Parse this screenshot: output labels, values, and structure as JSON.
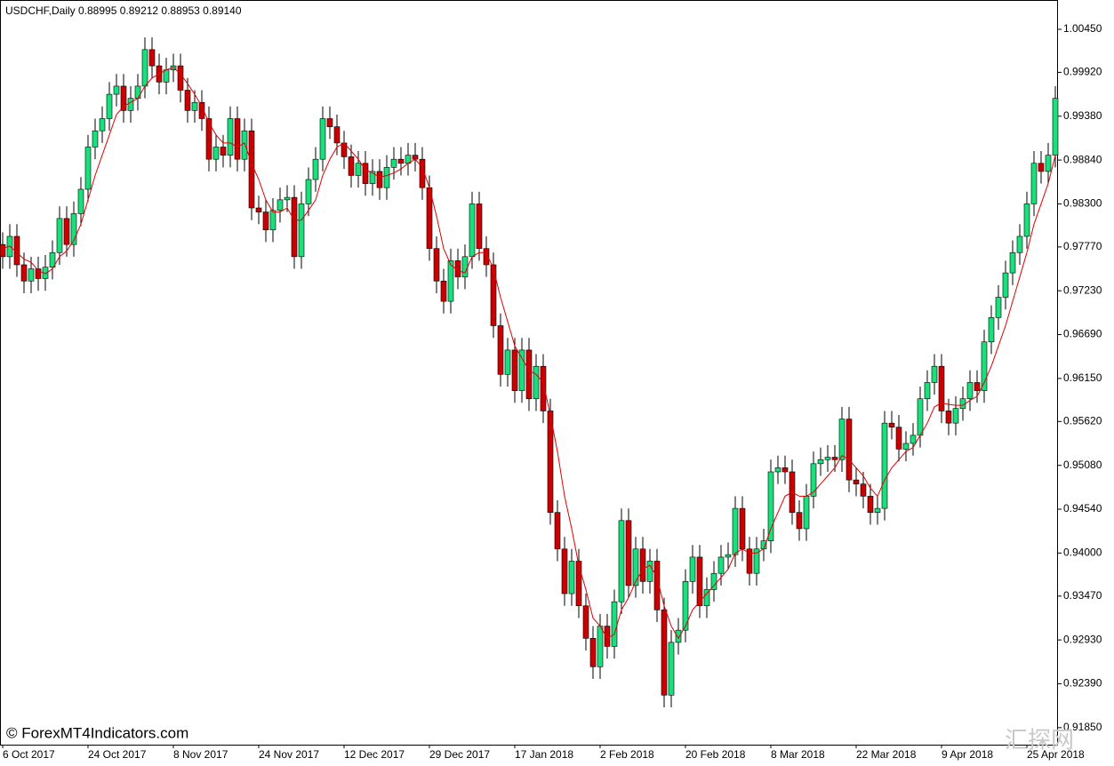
{
  "chart_data": {
    "type": "candlestick",
    "title": "USDCHF,Daily",
    "header_values": "0.88995 0.89212 0.88953 0.89140",
    "watermark": "© ForexMT4Indicators.com",
    "watermark2": "汇探网",
    "up_color": "#19e07c",
    "down_color": "#cc0000",
    "ylim": [
      0.9164,
      1.008
    ],
    "yticks": [
      {
        "value": 1.0045,
        "label": "1.00450"
      },
      {
        "value": 0.9992,
        "label": "0.99920"
      },
      {
        "value": 0.9938,
        "label": "0.99380"
      },
      {
        "value": 0.9884,
        "label": "0.98840"
      },
      {
        "value": 0.983,
        "label": "0.98300"
      },
      {
        "value": 0.9777,
        "label": "0.97770"
      },
      {
        "value": 0.9723,
        "label": "0.97230"
      },
      {
        "value": 0.9669,
        "label": "0.96690"
      },
      {
        "value": 0.9615,
        "label": "0.96150"
      },
      {
        "value": 0.9562,
        "label": "0.95620"
      },
      {
        "value": 0.9508,
        "label": "0.95080"
      },
      {
        "value": 0.9454,
        "label": "0.94540"
      },
      {
        "value": 0.94,
        "label": "0.94000"
      },
      {
        "value": 0.9347,
        "label": "0.93470"
      },
      {
        "value": 0.9293,
        "label": "0.92930"
      },
      {
        "value": 0.9239,
        "label": "0.92390"
      },
      {
        "value": 0.9185,
        "label": "0.91850"
      }
    ],
    "categories": [
      "6 Oct 2017",
      null,
      null,
      null,
      null,
      null,
      null,
      null,
      null,
      null,
      null,
      null,
      "24 Oct 2017",
      null,
      null,
      null,
      null,
      null,
      null,
      null,
      null,
      null,
      null,
      null,
      "8 Nov 2017",
      null,
      null,
      null,
      null,
      null,
      null,
      null,
      null,
      null,
      null,
      null,
      "24 Nov 2017",
      null,
      null,
      null,
      null,
      null,
      null,
      null,
      null,
      null,
      null,
      null,
      "12 Dec 2017",
      null,
      null,
      null,
      null,
      null,
      null,
      null,
      null,
      null,
      null,
      null,
      "29 Dec 2017",
      null,
      null,
      null,
      null,
      null,
      null,
      null,
      null,
      null,
      null,
      null,
      "17 Jan 2018",
      null,
      null,
      null,
      null,
      null,
      null,
      null,
      null,
      null,
      null,
      null,
      "2 Feb 2018",
      null,
      null,
      null,
      null,
      null,
      null,
      null,
      null,
      null,
      null,
      null,
      "20 Feb 2018",
      null,
      null,
      null,
      null,
      null,
      null,
      null,
      null,
      null,
      null,
      null,
      "8 Mar 2018",
      null,
      null,
      null,
      null,
      null,
      null,
      null,
      null,
      null,
      null,
      null,
      "22 Mar 2018",
      null,
      null,
      null,
      null,
      null,
      null,
      null,
      null,
      null,
      null,
      null,
      "9 Apr 2018",
      null,
      null,
      null,
      null,
      null,
      null,
      null,
      null,
      null,
      null,
      null,
      "25 Apr 2018",
      null,
      null,
      null,
      null
    ],
    "candles": [
      [
        0.978,
        0.9795,
        0.975,
        0.9765
      ],
      [
        0.9765,
        0.9805,
        0.975,
        0.979
      ],
      [
        0.979,
        0.9805,
        0.974,
        0.9755
      ],
      [
        0.9755,
        0.977,
        0.972,
        0.9735
      ],
      [
        0.9735,
        0.9765,
        0.972,
        0.975
      ],
      [
        0.975,
        0.9765,
        0.9723,
        0.9738
      ],
      [
        0.9738,
        0.9767,
        0.9723,
        0.9752
      ],
      [
        0.9752,
        0.9785,
        0.9737,
        0.977
      ],
      [
        0.977,
        0.9827,
        0.9755,
        0.9812
      ],
      [
        0.9812,
        0.9827,
        0.9765,
        0.978
      ],
      [
        0.978,
        0.9833,
        0.9765,
        0.9818
      ],
      [
        0.9818,
        0.9863,
        0.9803,
        0.9848
      ],
      [
        0.9848,
        0.9915,
        0.9833,
        0.99
      ],
      [
        0.99,
        0.9935,
        0.9885,
        0.992
      ],
      [
        0.992,
        0.995,
        0.9905,
        0.9935
      ],
      [
        0.9935,
        0.998,
        0.992,
        0.9965
      ],
      [
        0.9965,
        0.999,
        0.995,
        0.9975
      ],
      [
        0.9975,
        0.999,
        0.993,
        0.9945
      ],
      [
        0.9945,
        0.9975,
        0.993,
        0.996
      ],
      [
        0.996,
        0.999,
        0.9945,
        0.9975
      ],
      [
        0.9975,
        1.0035,
        0.996,
        1.002
      ],
      [
        1.002,
        1.0035,
        0.9985,
        1.0
      ],
      [
        1.0,
        1.0015,
        0.9965,
        0.998
      ],
      [
        0.998,
        1.001,
        0.9965,
        0.9995
      ],
      [
        0.9995,
        1.0015,
        0.998,
        1.0
      ],
      [
        1.0,
        1.0015,
        0.9955,
        0.997
      ],
      [
        0.997,
        0.9985,
        0.993,
        0.9945
      ],
      [
        0.9945,
        0.997,
        0.993,
        0.9955
      ],
      [
        0.9955,
        0.997,
        0.992,
        0.9935
      ],
      [
        0.9935,
        0.995,
        0.987,
        0.9885
      ],
      [
        0.9885,
        0.9915,
        0.987,
        0.99
      ],
      [
        0.99,
        0.9915,
        0.9875,
        0.989
      ],
      [
        0.989,
        0.995,
        0.9875,
        0.9935
      ],
      [
        0.9935,
        0.995,
        0.987,
        0.9885
      ],
      [
        0.9885,
        0.9935,
        0.987,
        0.992
      ],
      [
        0.992,
        0.9935,
        0.981,
        0.9825
      ],
      [
        0.9825,
        0.984,
        0.9805,
        0.982
      ],
      [
        0.982,
        0.9835,
        0.9783,
        0.9798
      ],
      [
        0.9798,
        0.9837,
        0.9783,
        0.9822
      ],
      [
        0.9822,
        0.985,
        0.9807,
        0.9835
      ],
      [
        0.9835,
        0.9853,
        0.982,
        0.9838
      ],
      [
        0.9838,
        0.9853,
        0.975,
        0.9765
      ],
      [
        0.9765,
        0.9845,
        0.975,
        0.983
      ],
      [
        0.983,
        0.9875,
        0.9815,
        0.986
      ],
      [
        0.986,
        0.99,
        0.9845,
        0.9885
      ],
      [
        0.9885,
        0.995,
        0.987,
        0.9935
      ],
      [
        0.9935,
        0.995,
        0.991,
        0.9925
      ],
      [
        0.9925,
        0.994,
        0.989,
        0.9905
      ],
      [
        0.9905,
        0.992,
        0.9873,
        0.9888
      ],
      [
        0.9888,
        0.9903,
        0.985,
        0.9865
      ],
      [
        0.9865,
        0.9895,
        0.985,
        0.988
      ],
      [
        0.988,
        0.9895,
        0.984,
        0.9855
      ],
      [
        0.9855,
        0.9885,
        0.984,
        0.987
      ],
      [
        0.987,
        0.9885,
        0.9835,
        0.985
      ],
      [
        0.985,
        0.989,
        0.9835,
        0.9875
      ],
      [
        0.9875,
        0.99,
        0.986,
        0.9885
      ],
      [
        0.9885,
        0.99,
        0.9865,
        0.988
      ],
      [
        0.988,
        0.9905,
        0.9865,
        0.989
      ],
      [
        0.989,
        0.9905,
        0.987,
        0.9885
      ],
      [
        0.9885,
        0.99,
        0.9835,
        0.985
      ],
      [
        0.985,
        0.9865,
        0.976,
        0.9775
      ],
      [
        0.9775,
        0.979,
        0.972,
        0.9735
      ],
      [
        0.9735,
        0.975,
        0.9695,
        0.971
      ],
      [
        0.971,
        0.9775,
        0.9695,
        0.976
      ],
      [
        0.976,
        0.9775,
        0.9725,
        0.974
      ],
      [
        0.974,
        0.978,
        0.9725,
        0.9765
      ],
      [
        0.9765,
        0.9845,
        0.975,
        0.983
      ],
      [
        0.983,
        0.9845,
        0.976,
        0.9775
      ],
      [
        0.9775,
        0.979,
        0.974,
        0.9755
      ],
      [
        0.9755,
        0.977,
        0.9665,
        0.968
      ],
      [
        0.968,
        0.9695,
        0.9605,
        0.962
      ],
      [
        0.962,
        0.9665,
        0.9605,
        0.965
      ],
      [
        0.965,
        0.9665,
        0.9585,
        0.96
      ],
      [
        0.96,
        0.9665,
        0.9585,
        0.965
      ],
      [
        0.965,
        0.9665,
        0.9575,
        0.959
      ],
      [
        0.959,
        0.9645,
        0.9575,
        0.963
      ],
      [
        0.963,
        0.9645,
        0.956,
        0.9575
      ],
      [
        0.9575,
        0.959,
        0.9435,
        0.945
      ],
      [
        0.945,
        0.9465,
        0.939,
        0.9405
      ],
      [
        0.9405,
        0.942,
        0.9335,
        0.935
      ],
      [
        0.935,
        0.9405,
        0.9335,
        0.939
      ],
      [
        0.939,
        0.9405,
        0.932,
        0.9335
      ],
      [
        0.9335,
        0.935,
        0.928,
        0.9295
      ],
      [
        0.9295,
        0.931,
        0.9245,
        0.926
      ],
      [
        0.926,
        0.9325,
        0.9245,
        0.931
      ],
      [
        0.931,
        0.9325,
        0.927,
        0.9285
      ],
      [
        0.9285,
        0.9355,
        0.927,
        0.934
      ],
      [
        0.934,
        0.9455,
        0.9325,
        0.944
      ],
      [
        0.944,
        0.9455,
        0.9345,
        0.936
      ],
      [
        0.936,
        0.942,
        0.9345,
        0.9405
      ],
      [
        0.9405,
        0.942,
        0.935,
        0.9365
      ],
      [
        0.9365,
        0.9405,
        0.935,
        0.939
      ],
      [
        0.939,
        0.9405,
        0.9315,
        0.933
      ],
      [
        0.933,
        0.9345,
        0.921,
        0.9225
      ],
      [
        0.9225,
        0.9305,
        0.921,
        0.929
      ],
      [
        0.929,
        0.932,
        0.9275,
        0.9305
      ],
      [
        0.9305,
        0.938,
        0.929,
        0.9365
      ],
      [
        0.9365,
        0.941,
        0.935,
        0.9395
      ],
      [
        0.9395,
        0.941,
        0.932,
        0.9335
      ],
      [
        0.9335,
        0.937,
        0.932,
        0.9355
      ],
      [
        0.9355,
        0.939,
        0.934,
        0.9375
      ],
      [
        0.9375,
        0.941,
        0.936,
        0.9395
      ],
      [
        0.9395,
        0.9413,
        0.938,
        0.9398
      ],
      [
        0.9398,
        0.947,
        0.9383,
        0.9455
      ],
      [
        0.9455,
        0.947,
        0.939,
        0.9405
      ],
      [
        0.9405,
        0.942,
        0.936,
        0.9375
      ],
      [
        0.9375,
        0.942,
        0.936,
        0.9405
      ],
      [
        0.9405,
        0.943,
        0.939,
        0.9415
      ],
      [
        0.9415,
        0.9515,
        0.94,
        0.95
      ],
      [
        0.95,
        0.952,
        0.9485,
        0.9505
      ],
      [
        0.9505,
        0.952,
        0.9485,
        0.95
      ],
      [
        0.95,
        0.9515,
        0.9435,
        0.945
      ],
      [
        0.945,
        0.9465,
        0.9415,
        0.943
      ],
      [
        0.943,
        0.9485,
        0.9415,
        0.947
      ],
      [
        0.947,
        0.9525,
        0.9455,
        0.951
      ],
      [
        0.951,
        0.953,
        0.9495,
        0.9515
      ],
      [
        0.9515,
        0.9533,
        0.95,
        0.9518
      ],
      [
        0.9518,
        0.9533,
        0.95,
        0.9515
      ],
      [
        0.9515,
        0.958,
        0.95,
        0.9565
      ],
      [
        0.9565,
        0.958,
        0.9475,
        0.949
      ],
      [
        0.949,
        0.9505,
        0.947,
        0.9485
      ],
      [
        0.9485,
        0.95,
        0.9455,
        0.947
      ],
      [
        0.947,
        0.9485,
        0.9435,
        0.945
      ],
      [
        0.945,
        0.947,
        0.9435,
        0.9455
      ],
      [
        0.9455,
        0.9575,
        0.944,
        0.956
      ],
      [
        0.956,
        0.9575,
        0.954,
        0.9555
      ],
      [
        0.9555,
        0.957,
        0.9513,
        0.9528
      ],
      [
        0.9528,
        0.955,
        0.9513,
        0.9535
      ],
      [
        0.9535,
        0.956,
        0.952,
        0.9545
      ],
      [
        0.9545,
        0.9605,
        0.953,
        0.959
      ],
      [
        0.959,
        0.9625,
        0.9575,
        0.961
      ],
      [
        0.961,
        0.9645,
        0.9595,
        0.963
      ],
      [
        0.963,
        0.9645,
        0.956,
        0.9575
      ],
      [
        0.9575,
        0.959,
        0.9545,
        0.956
      ],
      [
        0.956,
        0.9593,
        0.9545,
        0.9578
      ],
      [
        0.9578,
        0.9605,
        0.9563,
        0.959
      ],
      [
        0.959,
        0.9625,
        0.9575,
        0.961
      ],
      [
        0.961,
        0.9625,
        0.9585,
        0.96
      ],
      [
        0.96,
        0.9675,
        0.9585,
        0.966
      ],
      [
        0.966,
        0.9705,
        0.9645,
        0.969
      ],
      [
        0.969,
        0.973,
        0.9675,
        0.9715
      ],
      [
        0.9715,
        0.976,
        0.97,
        0.9745
      ],
      [
        0.9745,
        0.9785,
        0.973,
        0.977
      ],
      [
        0.977,
        0.9805,
        0.9755,
        0.979
      ],
      [
        0.979,
        0.9845,
        0.9775,
        0.983
      ],
      [
        0.983,
        0.9895,
        0.9815,
        0.988
      ],
      [
        0.988,
        0.9895,
        0.9855,
        0.987
      ],
      [
        0.987,
        0.9905,
        0.9855,
        0.989
      ],
      [
        0.989,
        0.9975,
        0.9875,
        0.996
      ]
    ],
    "ma": {
      "color": "#e00000",
      "values": [
        0.9775,
        0.9778,
        0.977,
        0.9762,
        0.9758,
        0.9748,
        0.9744,
        0.975,
        0.9765,
        0.9772,
        0.9785,
        0.9805,
        0.9835,
        0.9865,
        0.989,
        0.9915,
        0.994,
        0.995,
        0.9955,
        0.996,
        0.9975,
        0.9985,
        0.999,
        0.9995,
        0.9998,
        0.999,
        0.9978,
        0.9965,
        0.995,
        0.993,
        0.9915,
        0.9905,
        0.9905,
        0.99,
        0.9905,
        0.988,
        0.986,
        0.9835,
        0.982,
        0.982,
        0.9825,
        0.981,
        0.981,
        0.9822,
        0.9835,
        0.9865,
        0.9885,
        0.99,
        0.9905,
        0.9895,
        0.9885,
        0.9872,
        0.9868,
        0.9863,
        0.9865,
        0.9868,
        0.9873,
        0.988,
        0.9885,
        0.9875,
        0.985,
        0.9815,
        0.9775,
        0.9755,
        0.9748,
        0.9745,
        0.9765,
        0.977,
        0.977,
        0.975,
        0.9715,
        0.9685,
        0.9655,
        0.964,
        0.9625,
        0.962,
        0.961,
        0.957,
        0.9525,
        0.947,
        0.943,
        0.9385,
        0.9355,
        0.932,
        0.931,
        0.9295,
        0.93,
        0.933,
        0.9345,
        0.9365,
        0.938,
        0.9385,
        0.937,
        0.9335,
        0.931,
        0.9295,
        0.931,
        0.933,
        0.934,
        0.935,
        0.936,
        0.937,
        0.938,
        0.94,
        0.9405,
        0.94,
        0.94,
        0.9405,
        0.943,
        0.945,
        0.947,
        0.9475,
        0.947,
        0.947,
        0.9475,
        0.9485,
        0.9495,
        0.9505,
        0.952,
        0.9515,
        0.9505,
        0.9495,
        0.948,
        0.947,
        0.949,
        0.9505,
        0.9515,
        0.9525,
        0.953,
        0.9545,
        0.956,
        0.958,
        0.9585,
        0.9583,
        0.9582,
        0.9582,
        0.9588,
        0.9593,
        0.961,
        0.963,
        0.9655,
        0.968,
        0.971,
        0.974,
        0.977,
        0.9805,
        0.983,
        0.9855,
        0.989
      ]
    }
  }
}
